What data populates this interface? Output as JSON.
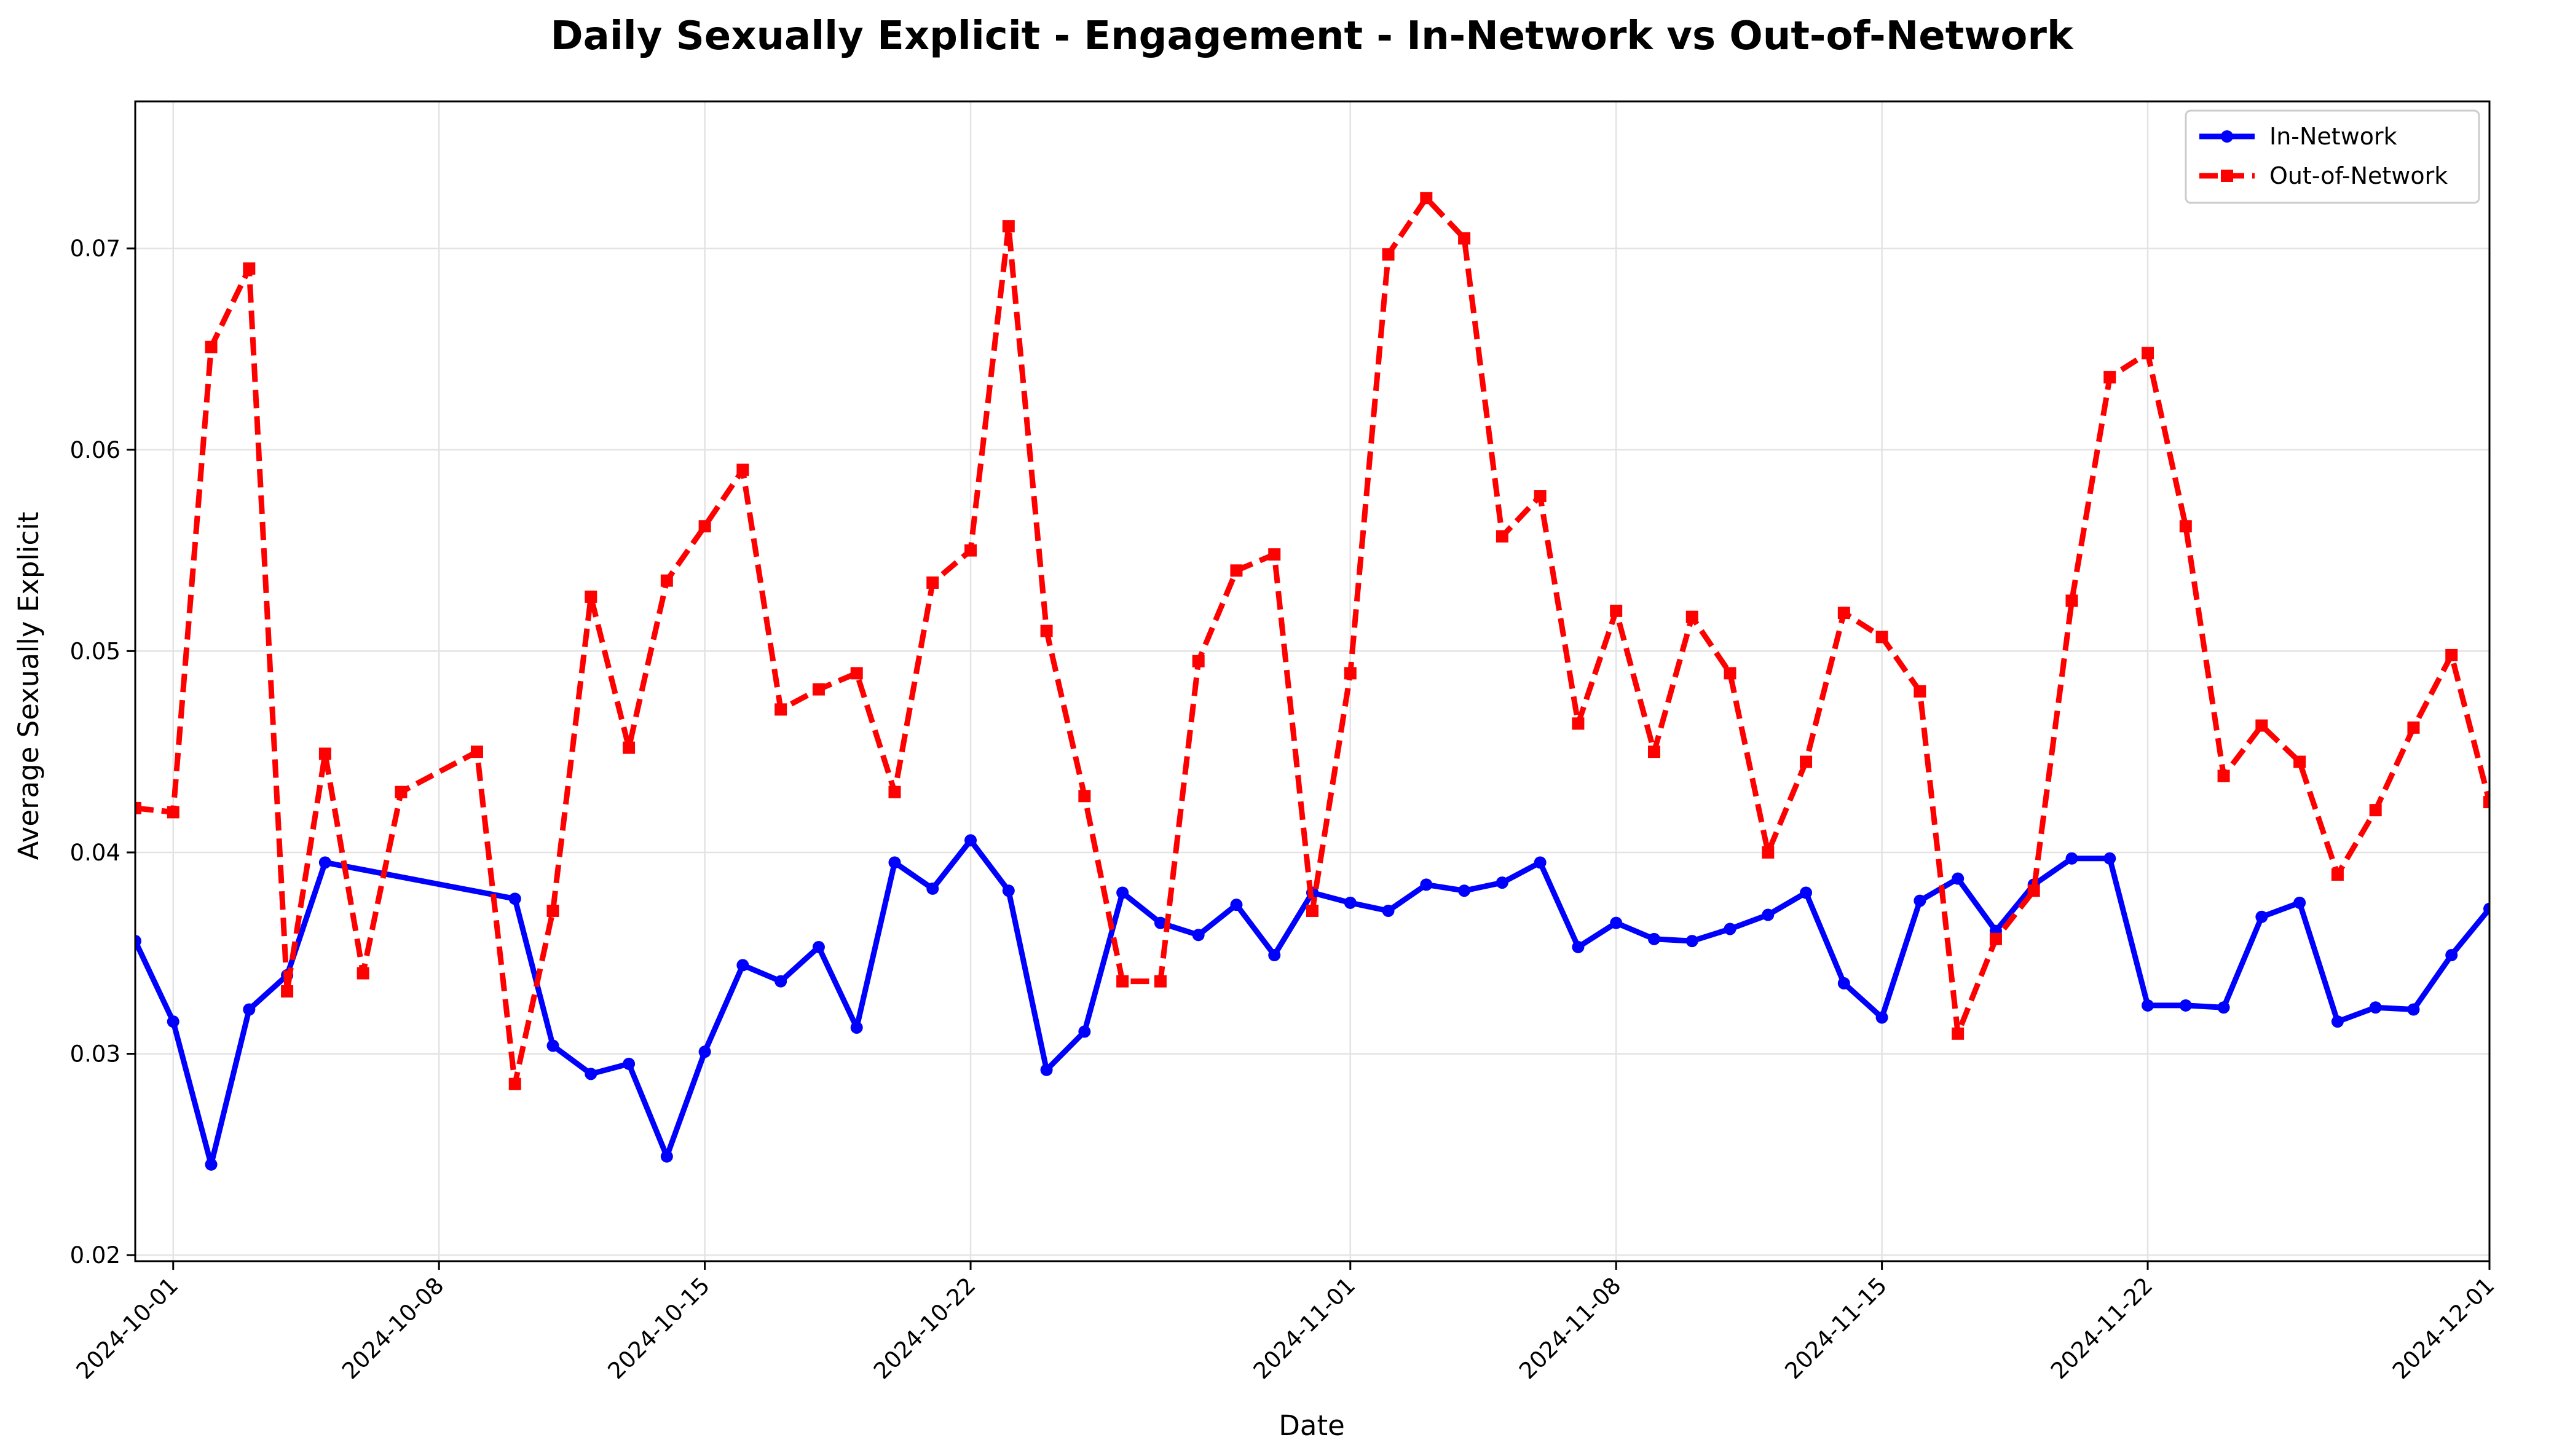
{
  "chart_data": {
    "type": "line",
    "title": "Daily Sexually Explicit - Engagement - In-Network vs Out-of-Network",
    "xlabel": "Date",
    "ylabel": "Average Sexually Explicit",
    "xlim": [
      "2024-09-30",
      "2024-12-01"
    ],
    "ylim": [
      0.0197,
      0.0773
    ],
    "x_ticks": [
      "2024-10-01",
      "2024-10-08",
      "2024-10-15",
      "2024-10-22",
      "2024-11-01",
      "2024-11-08",
      "2024-11-15",
      "2024-11-22",
      "2024-12-01"
    ],
    "y_ticks": [
      "0.02",
      "0.03",
      "0.04",
      "0.05",
      "0.06",
      "0.07"
    ],
    "grid": true,
    "legend_position": "top-right",
    "series": [
      {
        "name": "In-Network",
        "color": "#0000ff",
        "line_style": "solid",
        "marker": "circle",
        "points": [
          [
            "2024-09-30",
            0.0356
          ],
          [
            "2024-10-01",
            0.0316
          ],
          [
            "2024-10-02",
            0.0245
          ],
          [
            "2024-10-03",
            0.0322
          ],
          [
            "2024-10-04",
            0.0339
          ],
          [
            "2024-10-05",
            0.0395
          ],
          [
            "2024-10-10",
            0.0377
          ],
          [
            "2024-10-11",
            0.0304
          ],
          [
            "2024-10-12",
            0.029
          ],
          [
            "2024-10-13",
            0.0295
          ],
          [
            "2024-10-14",
            0.0249
          ],
          [
            "2024-10-15",
            0.0301
          ],
          [
            "2024-10-16",
            0.0344
          ],
          [
            "2024-10-17",
            0.0336
          ],
          [
            "2024-10-18",
            0.0353
          ],
          [
            "2024-10-19",
            0.0313
          ],
          [
            "2024-10-20",
            0.0395
          ],
          [
            "2024-10-21",
            0.0382
          ],
          [
            "2024-10-22",
            0.0406
          ],
          [
            "2024-10-23",
            0.0381
          ],
          [
            "2024-10-24",
            0.0292
          ],
          [
            "2024-10-25",
            0.0311
          ],
          [
            "2024-10-26",
            0.038
          ],
          [
            "2024-10-27",
            0.0365
          ],
          [
            "2024-10-28",
            0.0359
          ],
          [
            "2024-10-29",
            0.0374
          ],
          [
            "2024-10-30",
            0.0349
          ],
          [
            "2024-10-31",
            0.038
          ],
          [
            "2024-11-01",
            0.0375
          ],
          [
            "2024-11-02",
            0.0371
          ],
          [
            "2024-11-03",
            0.0384
          ],
          [
            "2024-11-04",
            0.0381
          ],
          [
            "2024-11-05",
            0.0385
          ],
          [
            "2024-11-06",
            0.0395
          ],
          [
            "2024-11-07",
            0.0353
          ],
          [
            "2024-11-08",
            0.0365
          ],
          [
            "2024-11-09",
            0.0357
          ],
          [
            "2024-11-10",
            0.0356
          ],
          [
            "2024-11-11",
            0.0362
          ],
          [
            "2024-11-12",
            0.0369
          ],
          [
            "2024-11-13",
            0.038
          ],
          [
            "2024-11-14",
            0.0335
          ],
          [
            "2024-11-15",
            0.0318
          ],
          [
            "2024-11-16",
            0.0376
          ],
          [
            "2024-11-17",
            0.0387
          ],
          [
            "2024-11-18",
            0.0361
          ],
          [
            "2024-11-19",
            0.0384
          ],
          [
            "2024-11-20",
            0.0397
          ],
          [
            "2024-11-21",
            0.0397
          ],
          [
            "2024-11-22",
            0.0324
          ],
          [
            "2024-11-23",
            0.0324
          ],
          [
            "2024-11-24",
            0.0323
          ],
          [
            "2024-11-25",
            0.0368
          ],
          [
            "2024-11-26",
            0.0375
          ],
          [
            "2024-11-27",
            0.0316
          ],
          [
            "2024-11-28",
            0.0323
          ],
          [
            "2024-11-29",
            0.0322
          ],
          [
            "2024-11-30",
            0.0349
          ],
          [
            "2024-12-01",
            0.0372
          ]
        ]
      },
      {
        "name": "Out-of-Network",
        "color": "#ff0000",
        "line_style": "dashed",
        "marker": "square",
        "points": [
          [
            "2024-09-30",
            0.0422
          ],
          [
            "2024-10-01",
            0.042
          ],
          [
            "2024-10-02",
            0.0651
          ],
          [
            "2024-10-03",
            0.069
          ],
          [
            "2024-10-04",
            0.0331
          ],
          [
            "2024-10-05",
            0.0449
          ],
          [
            "2024-10-06",
            0.034
          ],
          [
            "2024-10-07",
            0.043
          ],
          [
            "2024-10-09",
            0.045
          ],
          [
            "2024-10-10",
            0.0285
          ],
          [
            "2024-10-11",
            0.0371
          ],
          [
            "2024-10-12",
            0.0527
          ],
          [
            "2024-10-13",
            0.0452
          ],
          [
            "2024-10-14",
            0.0535
          ],
          [
            "2024-10-15",
            0.0562
          ],
          [
            "2024-10-16",
            0.059
          ],
          [
            "2024-10-17",
            0.0471
          ],
          [
            "2024-10-18",
            0.0481
          ],
          [
            "2024-10-19",
            0.0489
          ],
          [
            "2024-10-20",
            0.043
          ],
          [
            "2024-10-21",
            0.0534
          ],
          [
            "2024-10-22",
            0.055
          ],
          [
            "2024-10-23",
            0.0711
          ],
          [
            "2024-10-24",
            0.051
          ],
          [
            "2024-10-25",
            0.0428
          ],
          [
            "2024-10-26",
            0.0336
          ],
          [
            "2024-10-27",
            0.0336
          ],
          [
            "2024-10-28",
            0.0495
          ],
          [
            "2024-10-29",
            0.054
          ],
          [
            "2024-10-30",
            0.0548
          ],
          [
            "2024-10-31",
            0.0371
          ],
          [
            "2024-11-01",
            0.0489
          ],
          [
            "2024-11-02",
            0.0697
          ],
          [
            "2024-11-03",
            0.0725
          ],
          [
            "2024-11-04",
            0.0705
          ],
          [
            "2024-11-05",
            0.0557
          ],
          [
            "2024-11-06",
            0.0577
          ],
          [
            "2024-11-07",
            0.0464
          ],
          [
            "2024-11-08",
            0.052
          ],
          [
            "2024-11-09",
            0.045
          ],
          [
            "2024-11-10",
            0.0517
          ],
          [
            "2024-11-11",
            0.0489
          ],
          [
            "2024-11-12",
            0.04
          ],
          [
            "2024-11-13",
            0.0445
          ],
          [
            "2024-11-14",
            0.0519
          ],
          [
            "2024-11-15",
            0.0507
          ],
          [
            "2024-11-16",
            0.048
          ],
          [
            "2024-11-17",
            0.031
          ],
          [
            "2024-11-18",
            0.0357
          ],
          [
            "2024-11-19",
            0.0381
          ],
          [
            "2024-11-20",
            0.0525
          ],
          [
            "2024-11-21",
            0.0636
          ],
          [
            "2024-11-22",
            0.0648
          ],
          [
            "2024-11-23",
            0.0562
          ],
          [
            "2024-11-24",
            0.0438
          ],
          [
            "2024-11-25",
            0.0463
          ],
          [
            "2024-11-26",
            0.0445
          ],
          [
            "2024-11-27",
            0.0389
          ],
          [
            "2024-11-28",
            0.0421
          ],
          [
            "2024-11-29",
            0.0462
          ],
          [
            "2024-11-30",
            0.0498
          ],
          [
            "2024-12-01",
            0.0425
          ]
        ]
      }
    ]
  }
}
